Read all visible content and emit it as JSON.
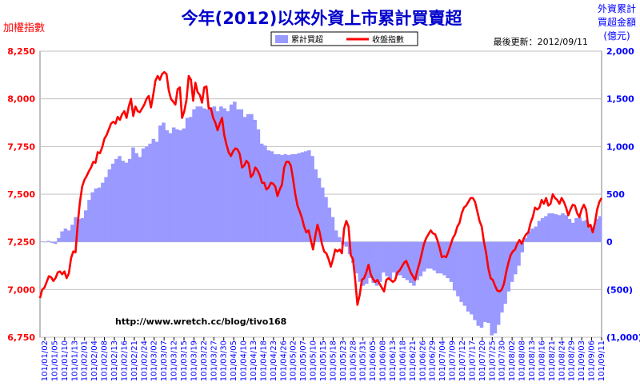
{
  "header": {
    "title": "今年(2012)以來外資上市累計買賣超",
    "left_axis_title": "加權指數",
    "right_axis_title_lines": [
      "外資累計",
      "買超金額",
      "(億元)"
    ],
    "updated": "最後更新：2012/09/11",
    "watermark": "http://www.wretch.cc/blog/tivo168"
  },
  "colors": {
    "bar": "#9999FF",
    "line": "#FF0000",
    "title": "#0000CC",
    "left_axis": "#FF0000",
    "right_axis": "#0000FF",
    "plot_bg": "#FFFFFF",
    "grid": "#C0C0C0"
  },
  "chart_data": {
    "type": "bar+line",
    "title": "今年(2012)以來外資上市累計買賣超",
    "left_axis": {
      "label": "加權指數",
      "range": [
        6750,
        8250
      ],
      "ticks": [
        "6,750",
        "7,000",
        "7,250",
        "7,500",
        "7,750",
        "8,000",
        "8,250"
      ]
    },
    "right_axis": {
      "label": "外資累計 買超金額 (億元)",
      "range": [
        -1000,
        2000
      ],
      "ticks": [
        "(1,000)",
        "(500)",
        "0",
        "500",
        "1,000",
        "1,500",
        "2,000"
      ]
    },
    "x_tick_labels": [
      "101/01/02",
      "101/01/05",
      "101/01/10",
      "101/01/13",
      "101/02/01",
      "101/02/04",
      "101/02/08",
      "101/02/13",
      "101/02/16",
      "101/02/21",
      "101/02/24",
      "101/03/02",
      "101/03/07",
      "101/03/12",
      "101/03/15",
      "101/03/19",
      "101/03/22",
      "101/03/27",
      "101/03/30",
      "101/04/05",
      "101/04/10",
      "101/04/13",
      "101/04/18",
      "101/04/23",
      "101/04/26",
      "101/05/02",
      "101/05/07",
      "101/05/10",
      "101/05/15",
      "101/05/18",
      "101/05/23",
      "101/05/28",
      "101/05/31",
      "101/06/05",
      "101/06/08",
      "101/06/13",
      "101/06/18",
      "101/06/21",
      "101/06/26",
      "101/06/29",
      "101/07/04",
      "101/07/09",
      "101/07/12",
      "101/07/17",
      "101/07/20",
      "101/07/25",
      "101/07/30",
      "101/08/02",
      "101/08/08",
      "101/08/13",
      "101/08/16",
      "101/08/21",
      "101/08/24",
      "101/08/29",
      "101/09/03",
      "101/09/06",
      "101/09/11"
    ],
    "legend": [
      {
        "name": "累計買超",
        "kind": "bar"
      },
      {
        "name": "收盤指數",
        "kind": "line"
      }
    ],
    "series": [
      {
        "name": "累計買超",
        "axis": "right",
        "values": [
          5,
          -5,
          10,
          -10,
          -20,
          40,
          110,
          140,
          120,
          180,
          260,
          240,
          250,
          330,
          440,
          520,
          560,
          570,
          620,
          680,
          760,
          820,
          870,
          900,
          850,
          830,
          870,
          990,
          930,
          890,
          980,
          1000,
          1030,
          1080,
          1050,
          1220,
          1250,
          1170,
          1140,
          1200,
          1180,
          1170,
          1190,
          1300,
          1310,
          1390,
          1420,
          1420,
          1400,
          1390,
          1410,
          1420,
          1370,
          1420,
          1400,
          1370,
          1440,
          1470,
          1390,
          1390,
          1310,
          1340,
          1340,
          1280,
          1180,
          1030,
          1010,
          960,
          950,
          920,
          920,
          910,
          920,
          910,
          920,
          920,
          930,
          940,
          950,
          960,
          900,
          760,
          670,
          570,
          470,
          360,
          260,
          120,
          50,
          -30,
          -50,
          -130,
          -220,
          -330,
          -420,
          -460,
          -440,
          -380,
          -430,
          -460,
          -420,
          -320,
          -360,
          -390,
          -320,
          -350,
          -350,
          -380,
          -400,
          -430,
          -460,
          -400,
          -360,
          -310,
          -280,
          -280,
          -300,
          -330,
          -330,
          -350,
          -380,
          -420,
          -510,
          -570,
          -630,
          -670,
          -730,
          -760,
          -820,
          -880,
          -900,
          -840,
          -850,
          -980,
          -960,
          -870,
          -740,
          -650,
          -520,
          -420,
          -340,
          -250,
          -110,
          40,
          110,
          140,
          160,
          220,
          250,
          270,
          300,
          300,
          290,
          280,
          300,
          280,
          240,
          200,
          250,
          260,
          220,
          230,
          170,
          140,
          240,
          270
        ]
      },
      {
        "name": "收盤指數",
        "axis": "left",
        "values": [
          6955,
          7000,
          7010,
          7040,
          7070,
          7065,
          7045,
          7060,
          7090,
          7095,
          7080,
          7095,
          7060,
          7085,
          7165,
          7200,
          7195,
          7345,
          7460,
          7540,
          7575,
          7595,
          7620,
          7640,
          7670,
          7665,
          7720,
          7715,
          7745,
          7790,
          7810,
          7840,
          7870,
          7880,
          7870,
          7905,
          7890,
          7920,
          7935,
          7900,
          7960,
          8000,
          7910,
          7960,
          7935,
          7930,
          7950,
          7970,
          8000,
          8015,
          7955,
          8020,
          8095,
          8120,
          8100,
          8130,
          8140,
          8130,
          8045,
          8000,
          7985,
          7970,
          8050,
          8060,
          7900,
          7935,
          7995,
          8120,
          8100,
          7990,
          8085,
          8035,
          8020,
          7980,
          8060,
          8065,
          7950,
          7950,
          7900,
          7875,
          7835,
          7870,
          7900,
          7810,
          7760,
          7720,
          7700,
          7725,
          7740,
          7735,
          7710,
          7640,
          7650,
          7675,
          7660,
          7590,
          7605,
          7640,
          7625,
          7600,
          7560,
          7560,
          7525,
          7535,
          7560,
          7555,
          7540,
          7490,
          7525,
          7550,
          7640,
          7670,
          7670,
          7650,
          7580,
          7500,
          7440,
          7410,
          7375,
          7330,
          7300,
          7310,
          7260,
          7210,
          7280,
          7340,
          7300,
          7240,
          7200,
          7190,
          7160,
          7120,
          7160,
          7210,
          7200,
          7210,
          7190,
          7320,
          7360,
          7330,
          7180,
          7160,
          7050,
          6920,
          6970,
          7050,
          7060,
          7090,
          7130,
          7080,
          7055,
          7040,
          7050,
          7030,
          7010,
          6990,
          7050,
          7060,
          7050,
          7040,
          7050,
          7090,
          7100,
          7120,
          7140,
          7150,
          7120,
          7090,
          7070,
          7050,
          7100,
          7140,
          7190,
          7240,
          7270,
          7290,
          7310,
          7295,
          7290,
          7260,
          7220,
          7170,
          7175,
          7170,
          7200,
          7235,
          7270,
          7290,
          7330,
          7350,
          7400,
          7430,
          7440,
          7460,
          7480,
          7480,
          7460,
          7410,
          7360,
          7330,
          7250,
          7190,
          7110,
          7060,
          7050,
          7020,
          6995,
          6990,
          7000,
          7030,
          7090,
          7140,
          7180,
          7200,
          7210,
          7240,
          7260,
          7240,
          7270,
          7290,
          7300,
          7350,
          7380,
          7430,
          7420,
          7430,
          7470,
          7450,
          7480,
          7440,
          7450,
          7500,
          7480,
          7470,
          7450,
          7480,
          7460,
          7430,
          7390,
          7420,
          7445,
          7440,
          7400,
          7380,
          7420,
          7445,
          7420,
          7330,
          7340,
          7300,
          7350,
          7420,
          7460,
          7480
        ]
      }
    ]
  }
}
